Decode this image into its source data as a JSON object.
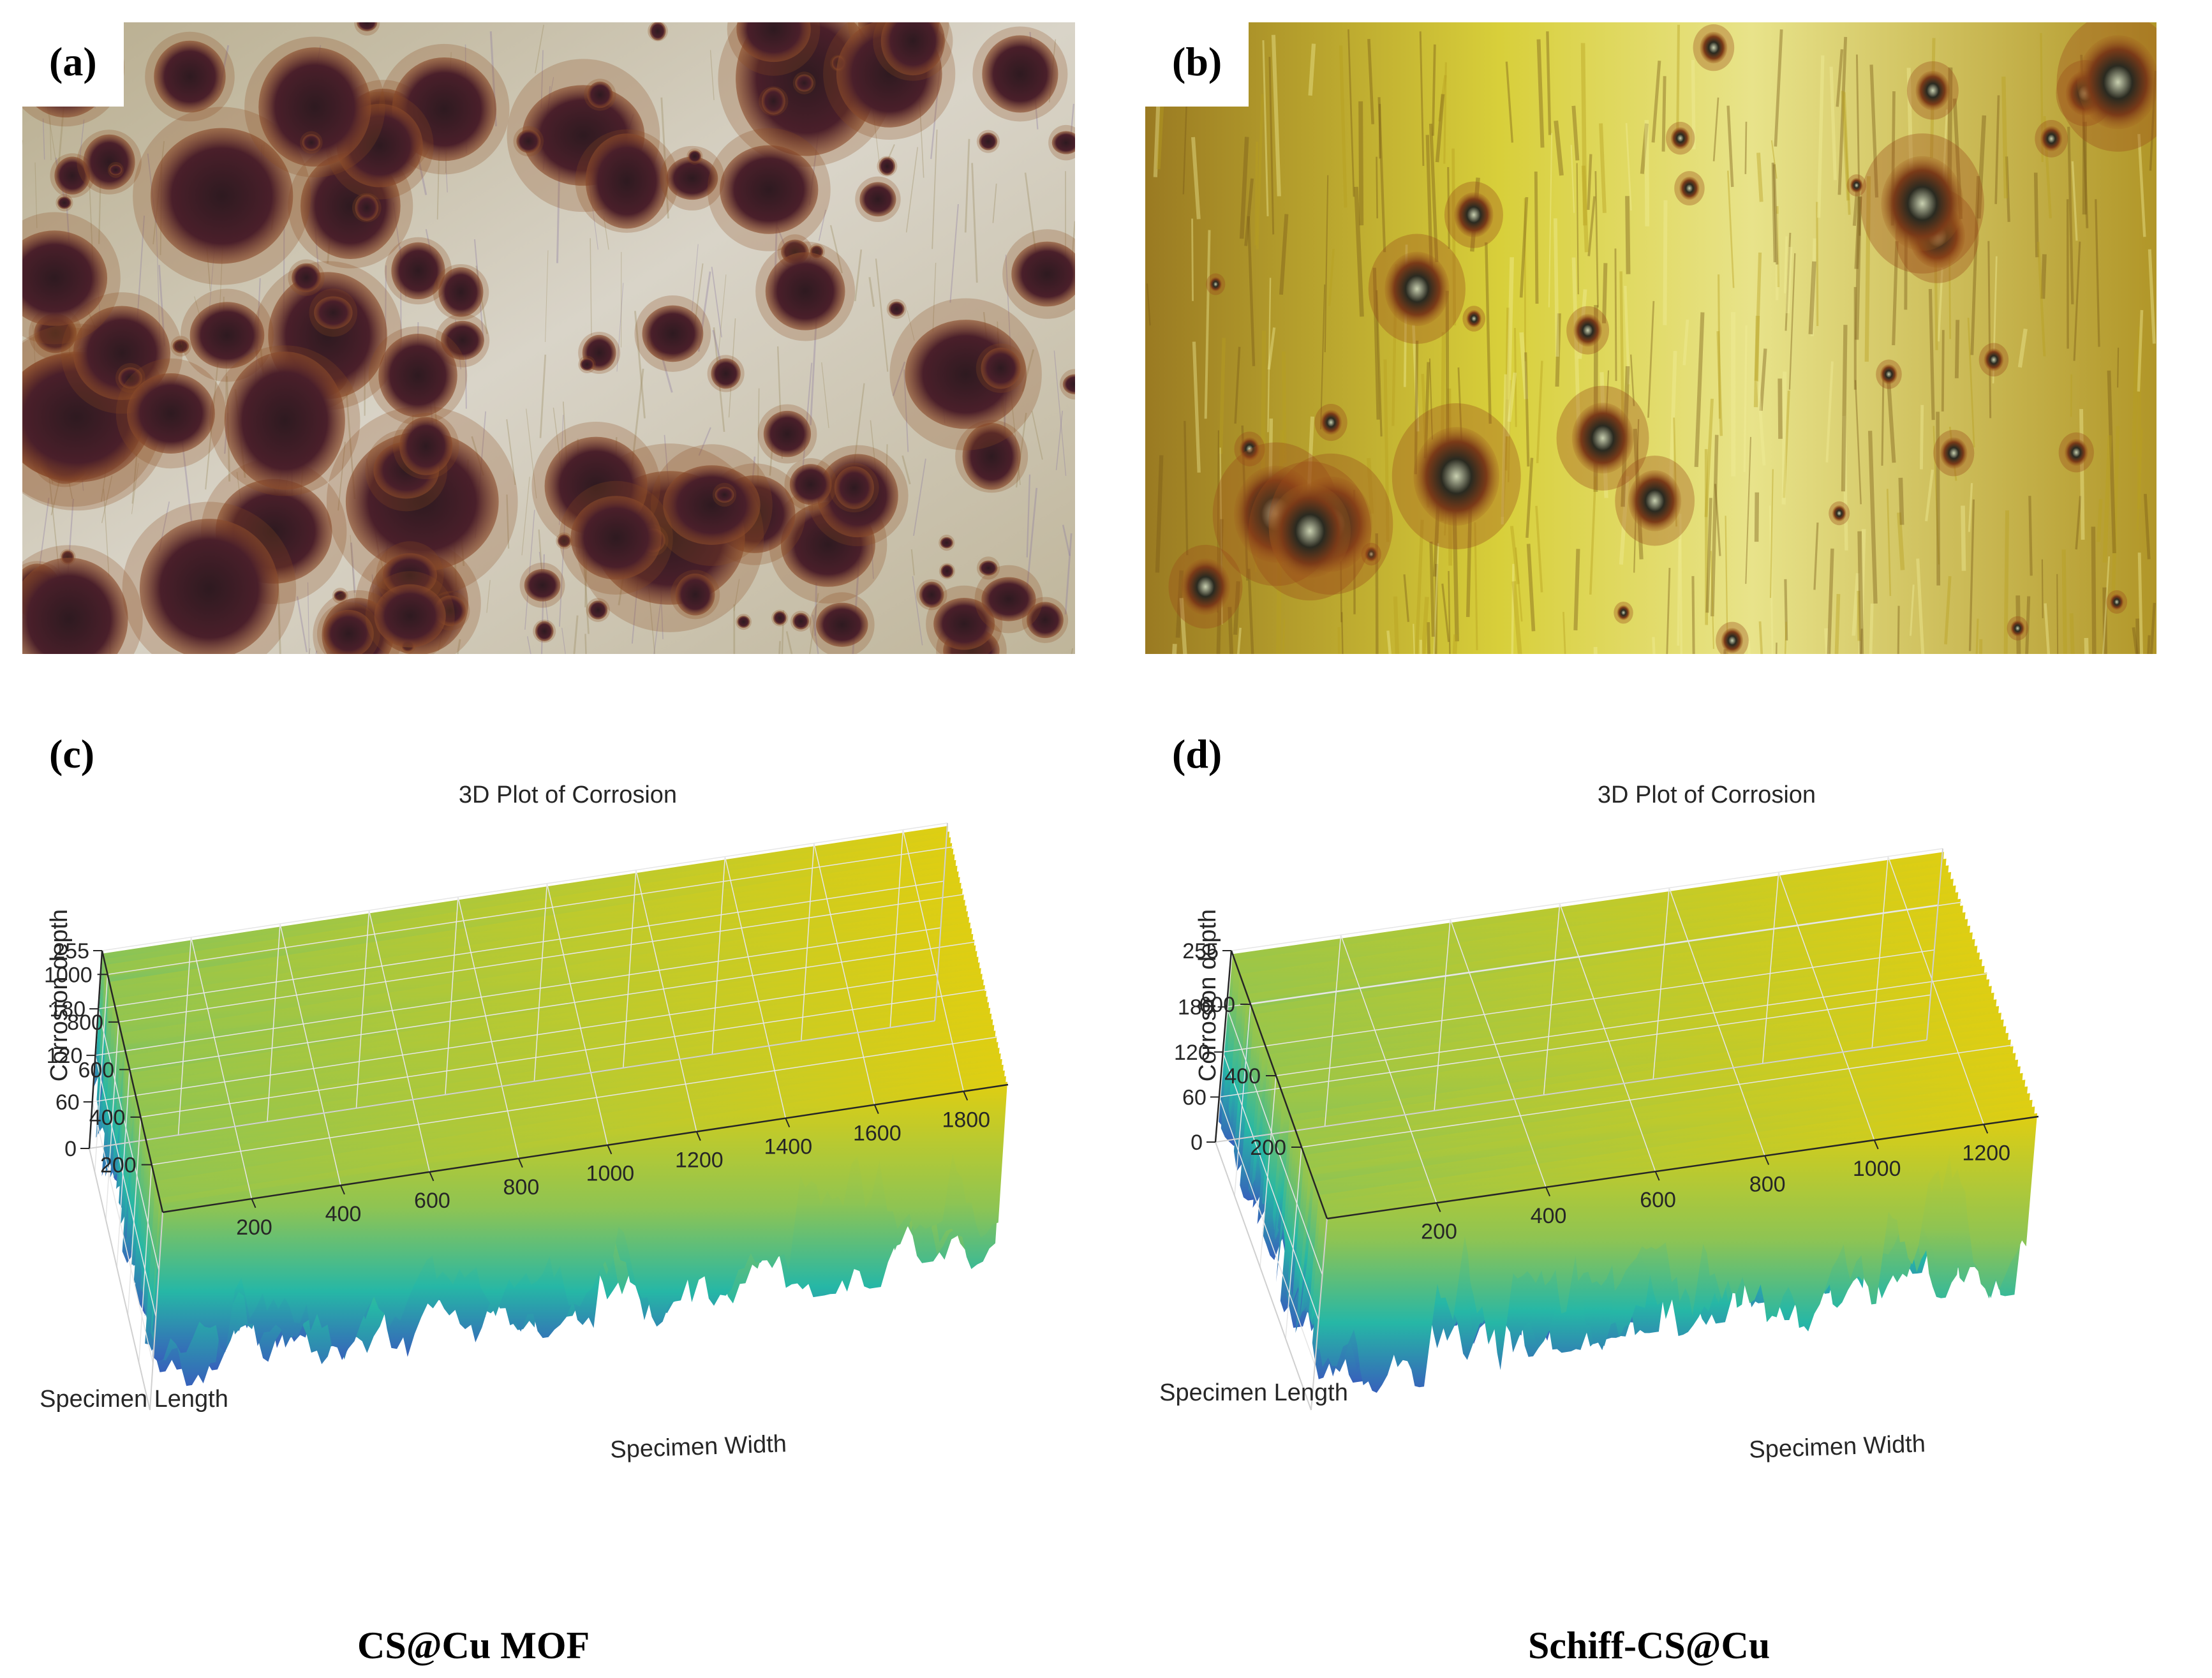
{
  "panels": {
    "a": {
      "label": "(a)",
      "pits": "dense-large-dark-pits"
    },
    "b": {
      "label": "(b)",
      "pits": "sparse-small-pits"
    },
    "c": {
      "label": "(c)"
    },
    "d": {
      "label": "(d)"
    }
  },
  "captions": {
    "left": "CS@Cu MOF",
    "right": "Schiff-CS@Cu"
  },
  "colors": {
    "surface_low": "#3b4cc0",
    "surface_mid": "#26b7a6",
    "surface_high": "#f5d000",
    "photo_a_base": "#cfc9b8",
    "photo_a_pit": "#4a1f24",
    "photo_b_base": "#c8b830",
    "photo_b_pit": "#3a2a1a"
  },
  "chart_data": [
    {
      "type": "surface",
      "title": "3D Plot of Corrosion",
      "xlabel": "Specimen Width",
      "ylabel": "Specimen Length",
      "zlabel": "Corrosion depth",
      "x_ticks": [
        "200",
        "400",
        "600",
        "800",
        "1000",
        "1200",
        "1400",
        "1600",
        "1800"
      ],
      "y_ticks": [
        "200",
        "400",
        "600",
        "800",
        "1000"
      ],
      "z_ticks": [
        "0",
        "60",
        "120",
        "180",
        "255"
      ],
      "xlim": [
        0,
        1900
      ],
      "ylim": [
        0,
        1100
      ],
      "zlim": [
        0,
        255
      ],
      "z_axis": "reversed",
      "grid": true
    },
    {
      "type": "surface",
      "title": "3D Plot of Corrosion",
      "xlabel": "Specimen Width",
      "ylabel": "Specimen Length",
      "zlabel": "Corrosion depth",
      "x_ticks": [
        "200",
        "400",
        "600",
        "800",
        "1000",
        "1200"
      ],
      "y_ticks": [
        "200",
        "400",
        "600"
      ],
      "z_ticks": [
        "0",
        "60",
        "120",
        "180",
        "255"
      ],
      "xlim": [
        0,
        1300
      ],
      "ylim": [
        0,
        750
      ],
      "zlim": [
        0,
        255
      ],
      "z_axis": "reversed",
      "grid": true
    }
  ]
}
